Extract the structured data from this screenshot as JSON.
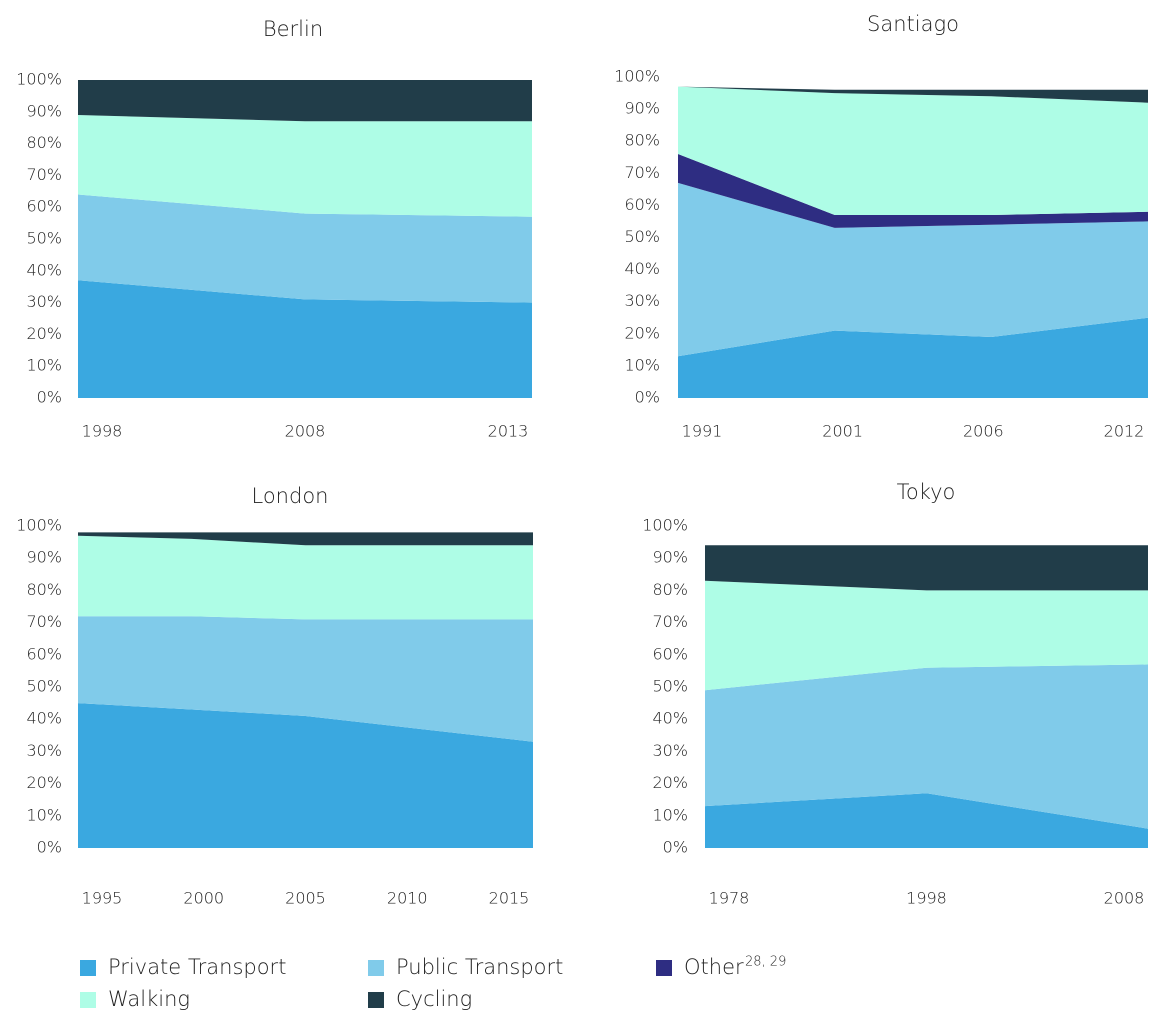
{
  "chart_data": [
    {
      "type": "stacked-area",
      "title": "Berlin",
      "categories": [
        "1998",
        "2008",
        "2013"
      ],
      "ylim": [
        0,
        100
      ],
      "yticks": [
        {
          "value": 0,
          "label": "0%"
        },
        {
          "value": 10,
          "label": "10%"
        },
        {
          "value": 20,
          "label": "20%"
        },
        {
          "value": 30,
          "label": "30%"
        },
        {
          "value": 40,
          "label": "40%"
        },
        {
          "value": 50,
          "label": "50%"
        },
        {
          "value": 60,
          "label": "60%"
        },
        {
          "value": 70,
          "label": "70%"
        },
        {
          "value": 80,
          "label": "80%"
        },
        {
          "value": 90,
          "label": "90%"
        },
        {
          "value": 100,
          "label": "100%"
        }
      ],
      "series": [
        {
          "name": "Private Transport",
          "color": "#3aa8e0",
          "values": [
            37,
            31,
            30
          ]
        },
        {
          "name": "Public Transport",
          "color": "#80cbea",
          "values": [
            27,
            27,
            27
          ]
        },
        {
          "name": "Walking",
          "color": "#aefde6",
          "values": [
            25,
            29,
            30
          ]
        },
        {
          "name": "Cycling",
          "color": "#213d49",
          "values": [
            11,
            13,
            13
          ]
        }
      ]
    },
    {
      "type": "stacked-area",
      "title": "Santiago",
      "categories": [
        "1991",
        "2001",
        "2006",
        "2012"
      ],
      "ylim": [
        0,
        100
      ],
      "yticks": [
        {
          "value": 0,
          "label": "0%"
        },
        {
          "value": 10,
          "label": "10%"
        },
        {
          "value": 20,
          "label": "20%"
        },
        {
          "value": 30,
          "label": "30%"
        },
        {
          "value": 40,
          "label": "40%"
        },
        {
          "value": 50,
          "label": "50%"
        },
        {
          "value": 60,
          "label": "60%"
        },
        {
          "value": 70,
          "label": "70%"
        },
        {
          "value": 80,
          "label": "80%"
        },
        {
          "value": 90,
          "label": "90%"
        },
        {
          "value": 100,
          "label": "100%"
        }
      ],
      "series": [
        {
          "name": "Private Transport",
          "color": "#3aa8e0",
          "values": [
            13,
            21,
            19,
            25
          ]
        },
        {
          "name": "Public Transport",
          "color": "#80cbea",
          "values": [
            54,
            32,
            35,
            30
          ]
        },
        {
          "name": "Other",
          "color": "#2e2d82",
          "values": [
            9,
            4,
            3,
            3
          ]
        },
        {
          "name": "Walking",
          "color": "#aefde6",
          "values": [
            21,
            38,
            37,
            34
          ]
        },
        {
          "name": "Cycling",
          "color": "#213d49",
          "values": [
            0,
            1,
            2,
            4
          ]
        }
      ]
    },
    {
      "type": "stacked-area",
      "title": "London",
      "categories": [
        "1995",
        "2000",
        "2005",
        "2010",
        "2015"
      ],
      "ylim": [
        0,
        100
      ],
      "yticks": [
        {
          "value": 0,
          "label": "0%"
        },
        {
          "value": 10,
          "label": "10%"
        },
        {
          "value": 20,
          "label": "20%"
        },
        {
          "value": 30,
          "label": "30%"
        },
        {
          "value": 40,
          "label": "40%"
        },
        {
          "value": 50,
          "label": "50%"
        },
        {
          "value": 60,
          "label": "60%"
        },
        {
          "value": 70,
          "label": "70%"
        },
        {
          "value": 80,
          "label": "80%"
        },
        {
          "value": 90,
          "label": "90%"
        },
        {
          "value": 100,
          "label": "100%"
        }
      ],
      "series": [
        {
          "name": "Private Transport",
          "color": "#3aa8e0",
          "values": [
            45,
            43,
            41,
            37,
            33
          ]
        },
        {
          "name": "Public Transport",
          "color": "#80cbea",
          "values": [
            27,
            29,
            30,
            34,
            38
          ]
        },
        {
          "name": "Walking",
          "color": "#aefde6",
          "values": [
            25,
            24,
            23,
            23,
            23
          ]
        },
        {
          "name": "Cycling",
          "color": "#213d49",
          "values": [
            1,
            2,
            4,
            4,
            4
          ]
        }
      ]
    },
    {
      "type": "stacked-area",
      "title": "Tokyo",
      "categories": [
        "1978",
        "1998",
        "2008"
      ],
      "ylim": [
        0,
        100
      ],
      "yticks": [
        {
          "value": 0,
          "label": "0%"
        },
        {
          "value": 10,
          "label": "10%"
        },
        {
          "value": 20,
          "label": "20%"
        },
        {
          "value": 30,
          "label": "30%"
        },
        {
          "value": 40,
          "label": "40%"
        },
        {
          "value": 50,
          "label": "50%"
        },
        {
          "value": 60,
          "label": "60%"
        },
        {
          "value": 70,
          "label": "70%"
        },
        {
          "value": 80,
          "label": "80%"
        },
        {
          "value": 90,
          "label": "90%"
        },
        {
          "value": 100,
          "label": "100%"
        }
      ],
      "series": [
        {
          "name": "Private Transport",
          "color": "#3aa8e0",
          "values": [
            13,
            17,
            6
          ]
        },
        {
          "name": "Public Transport",
          "color": "#80cbea",
          "values": [
            36,
            39,
            51
          ]
        },
        {
          "name": "Walking",
          "color": "#aefde6",
          "values": [
            34,
            24,
            23
          ]
        },
        {
          "name": "Cycling",
          "color": "#213d49",
          "values": [
            11,
            14,
            14
          ]
        }
      ]
    }
  ],
  "footnote": "28, 29"
}
